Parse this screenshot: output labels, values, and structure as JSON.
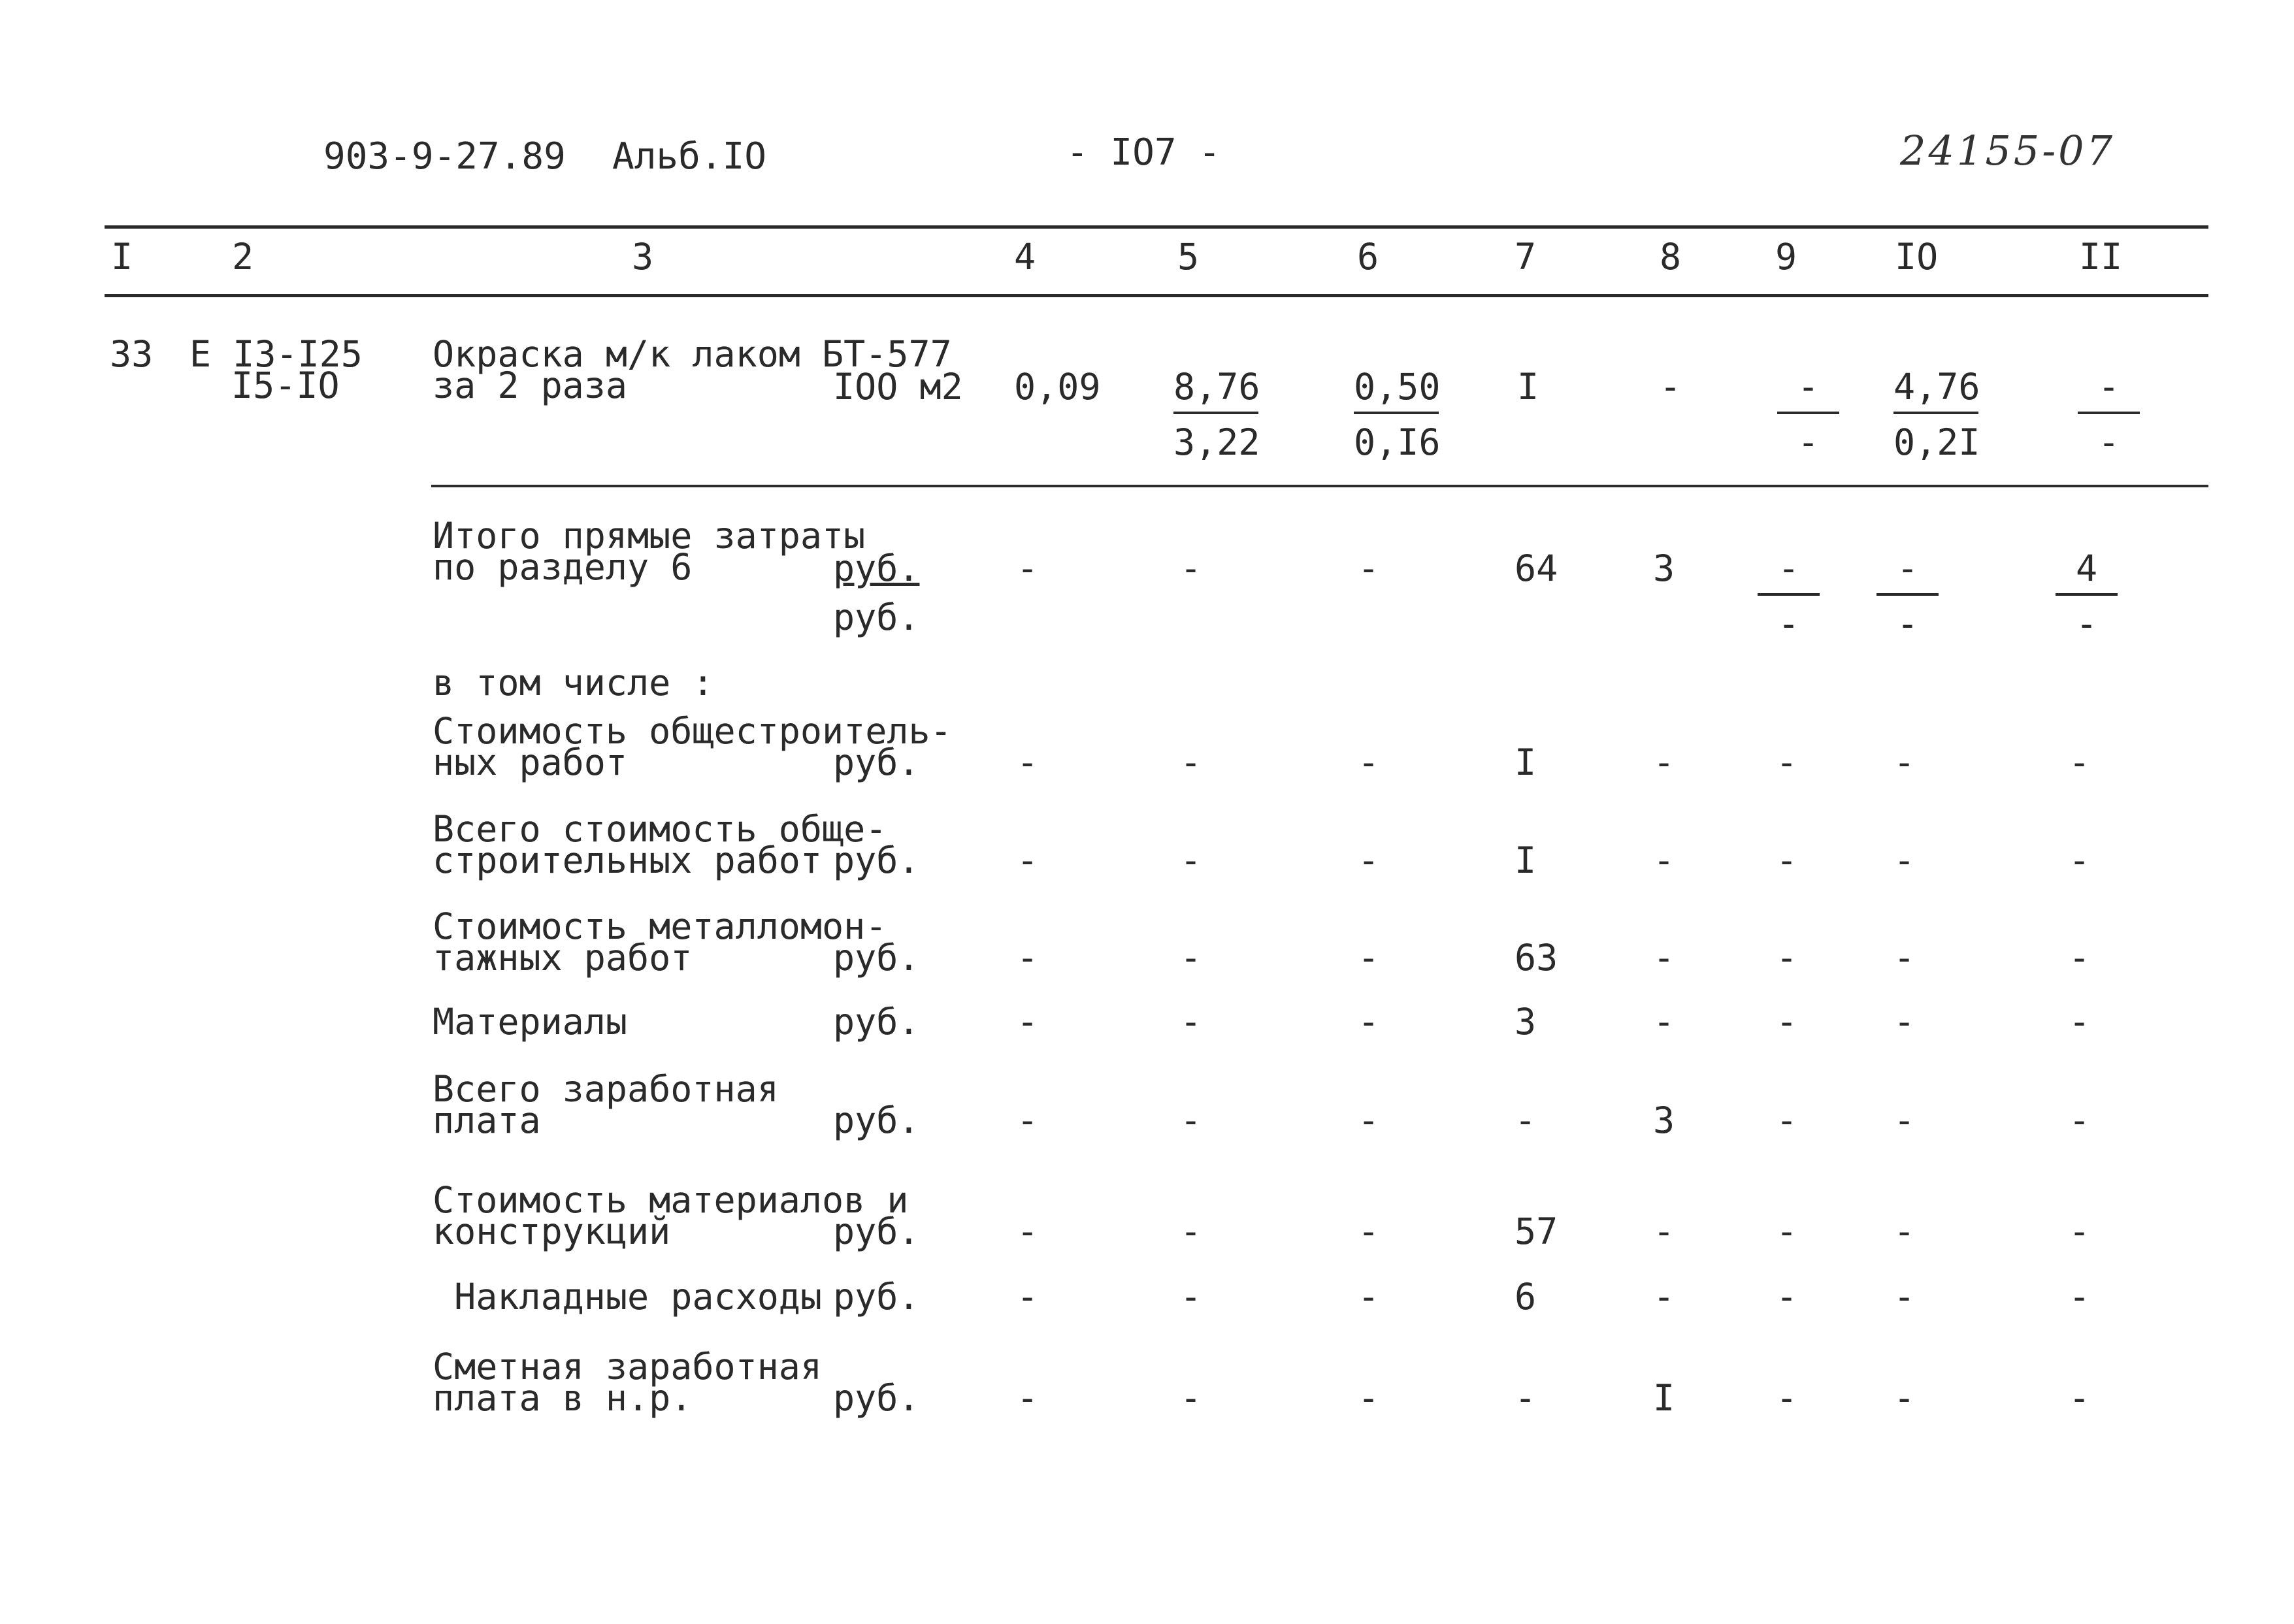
{
  "header": {
    "doc_code": "903-9-27.89",
    "album": "Альб.IO",
    "page": "- IO7 -",
    "handwritten_number": "24155-07"
  },
  "columns": [
    "I",
    "2",
    "3",
    "4",
    "5",
    "6",
    "7",
    "8",
    "9",
    "IO",
    "II"
  ],
  "item": {
    "num": "33",
    "code_line1": "Е I3-I25",
    "code_line2": "I5-IO",
    "desc_line1": "Окраска м/к лаком БТ-577",
    "desc_line2": "за 2 раза",
    "unit": "IOO м2",
    "c4": "0,09",
    "c5_num": "8,76",
    "c5_den": "3,22",
    "c6_num": "0,50",
    "c6_den": "0,I6",
    "c7": "I",
    "c8": "-",
    "c9_num": "-",
    "c9_den": "-",
    "c10_num": "4,76",
    "c10_den": "0,2I",
    "c11_num": "-",
    "c11_den": "-"
  },
  "total": {
    "line1": "Итого прямые затраты",
    "line2": "по разделу 6",
    "unit1": "руб.",
    "unit2": "руб.",
    "c4": "-",
    "c5": "-",
    "c6": "-",
    "c7": "64",
    "c8": "3",
    "c9_num": "-",
    "c9_den": "-",
    "c10_num": "-",
    "c10_den": "-",
    "c11_num": "4",
    "c11_den": "-"
  },
  "including_label": "в том числе :",
  "rows": [
    {
      "line1": "Стоимость общестроитель-",
      "line2": "ных работ",
      "unit": "руб.",
      "c4": "-",
      "c5": "-",
      "c6": "-",
      "c7": "I",
      "c8": "-",
      "c9": "-",
      "c10": "-",
      "c11": "-"
    },
    {
      "line1": "Всего стоимость обще-",
      "line2": "строительных работ",
      "unit": "руб.",
      "c4": "-",
      "c5": "-",
      "c6": "-",
      "c7": "I",
      "c8": "-",
      "c9": "-",
      "c10": "-",
      "c11": "-"
    },
    {
      "line1": "Стоимость металломон-",
      "line2": "тажных работ",
      "unit": "руб.",
      "c4": "-",
      "c5": "-",
      "c6": "-",
      "c7": "63",
      "c8": "-",
      "c9": "-",
      "c10": "-",
      "c11": "-"
    },
    {
      "line1": "",
      "line2": "Материалы",
      "unit": "руб.",
      "c4": "-",
      "c5": "-",
      "c6": "-",
      "c7": "3",
      "c8": "-",
      "c9": "-",
      "c10": "-",
      "c11": "-"
    },
    {
      "line1": "Всего заработная",
      "line2": "плата",
      "unit": "руб.",
      "c4": "-",
      "c5": "-",
      "c6": "-",
      "c7": "-",
      "c8": "3",
      "c9": "-",
      "c10": "-",
      "c11": "-"
    },
    {
      "line1": "Стоимость материалов и",
      "line2": "конструкций",
      "unit": "руб.",
      "c4": "-",
      "c5": "-",
      "c6": "-",
      "c7": "57",
      "c8": "-",
      "c9": "-",
      "c10": "-",
      "c11": "-"
    },
    {
      "line1": "",
      "line2": " Накладные расходы",
      "unit": "руб.",
      "c4": "-",
      "c5": "-",
      "c6": "-",
      "c7": "6",
      "c8": "-",
      "c9": "-",
      "c10": "-",
      "c11": "-"
    },
    {
      "line1": "Сметная заработная",
      "line2": "плата в н.р.",
      "unit": "руб.",
      "c4": "-",
      "c5": "-",
      "c6": "-",
      "c7": "-",
      "c8": "I",
      "c9": "-",
      "c10": "-",
      "c11": "-"
    }
  ]
}
